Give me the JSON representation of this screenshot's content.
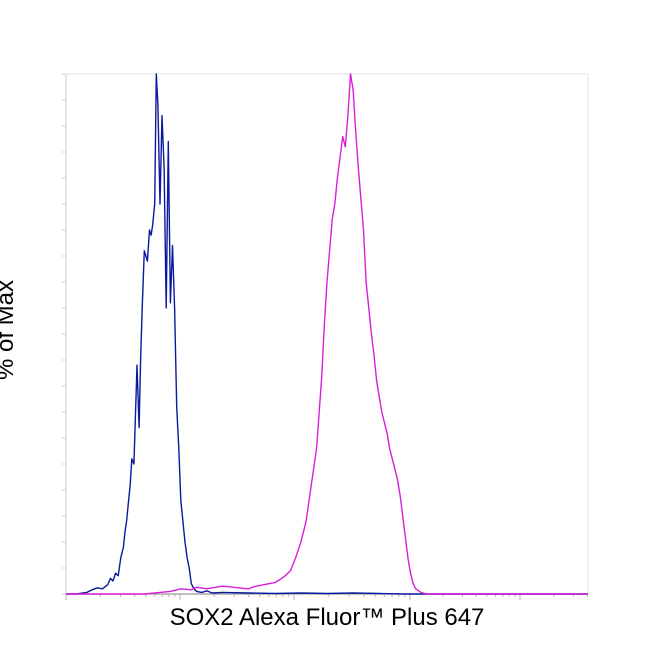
{
  "chart_data": {
    "type": "line",
    "title": "",
    "xlabel": "SOX2 Alexa Fluor™ Plus 647",
    "ylabel": "% of Max",
    "xlim": [
      0,
      100
    ],
    "ylim": [
      0,
      100
    ],
    "x_scale": "log-like (unlabeled)",
    "grid": false,
    "legend": "none",
    "series": [
      {
        "color": "#0a1a9e",
        "x": [
          0,
          2,
          4,
          5,
          6,
          7,
          8,
          8.5,
          9,
          9.5,
          10,
          10.5,
          11,
          11.3,
          11.6,
          12,
          12.3,
          12.6,
          13,
          13.3,
          13.6,
          14,
          14.3,
          14.6,
          15,
          15.3,
          15.6,
          16,
          16.3,
          16.6,
          17,
          17.3,
          17.6,
          18,
          18.4,
          18.8,
          19.2,
          19.6,
          20,
          20.4,
          20.8,
          21.2,
          21.6,
          22,
          22.4,
          22.8,
          23.2,
          23.6,
          24,
          24.5,
          25,
          26,
          27,
          28,
          30,
          35,
          40,
          45,
          50,
          55,
          60,
          65,
          70,
          80,
          90,
          100
        ],
        "y": [
          0,
          0,
          0.3,
          0.8,
          1.2,
          1,
          1.8,
          3,
          2.5,
          4,
          3.5,
          7,
          9,
          12,
          14,
          18,
          21,
          26,
          25,
          34,
          44,
          32,
          45,
          55,
          66,
          65,
          64,
          70,
          69,
          71,
          75,
          100,
          94,
          75,
          92,
          82,
          55,
          87,
          56,
          67,
          55,
          36,
          28,
          18,
          14,
          10,
          7,
          5,
          2,
          1,
          0.5,
          0.3,
          0.6,
          0.2,
          0.3,
          0.2,
          0.1,
          0.2,
          0.1,
          0.2,
          0.1,
          0,
          0,
          0,
          0,
          0
        ]
      },
      {
        "color": "#d81ed8",
        "x": [
          0,
          5,
          10,
          15,
          18,
          20,
          22,
          24,
          25,
          27,
          28,
          30,
          32,
          33,
          35,
          36,
          38,
          40,
          41,
          42,
          43,
          44,
          45,
          46,
          47,
          48,
          48.5,
          49,
          49.5,
          50,
          50.5,
          51,
          51.5,
          52,
          52.5,
          53,
          53.5,
          54,
          54.5,
          55,
          55.5,
          56,
          56.5,
          57,
          57.5,
          58,
          58.5,
          59,
          59.5,
          60,
          60.5,
          61,
          61.5,
          62,
          62.5,
          63,
          63.5,
          64,
          64.5,
          65,
          65.5,
          66,
          66.5,
          67,
          68,
          69,
          70,
          80,
          90,
          100
        ],
        "y": [
          0,
          0,
          0,
          0,
          0.3,
          0.5,
          1,
          0.8,
          1.3,
          1,
          1.2,
          1.5,
          1.3,
          1.2,
          1,
          1.4,
          1.8,
          2.2,
          2.8,
          3.5,
          4.5,
          7,
          10,
          14,
          21,
          28,
          35,
          42,
          52,
          60,
          66,
          72,
          75,
          80,
          84,
          88,
          86,
          92,
          100,
          97,
          89,
          82,
          76,
          70,
          60,
          55,
          50,
          46,
          41,
          38,
          35,
          33,
          31,
          28,
          26,
          24,
          22,
          19,
          15,
          11,
          7,
          4,
          2,
          1,
          0.3,
          0,
          0,
          0,
          0,
          0
        ]
      }
    ]
  }
}
